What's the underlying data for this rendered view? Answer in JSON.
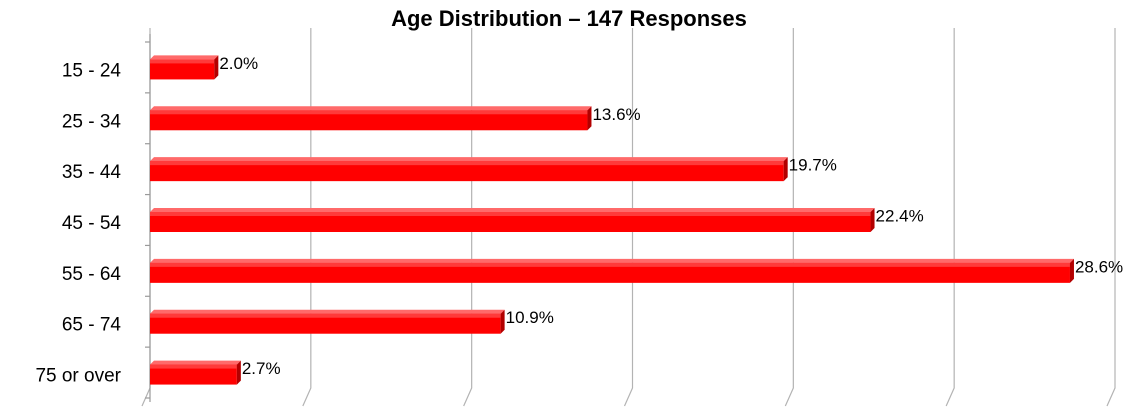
{
  "chart_data": {
    "type": "bar",
    "orientation": "horizontal",
    "title": "Age Distribution – 147 Responses",
    "categories": [
      "15 - 24",
      "25 - 34",
      "35 - 44",
      "45 - 54",
      "55 - 64",
      "65 - 74",
      "75 or over"
    ],
    "values": [
      2.0,
      13.6,
      19.7,
      22.4,
      28.6,
      10.9,
      2.7
    ],
    "value_labels": [
      "2.0%",
      "13.6%",
      "19.7%",
      "22.4%",
      "28.6%",
      "10.9%",
      "2.7%"
    ],
    "xlim": [
      0,
      30
    ],
    "xlabel": "",
    "ylabel": "",
    "grid": true,
    "legend": false,
    "style": "3d",
    "bar_color": "#ff0000"
  }
}
